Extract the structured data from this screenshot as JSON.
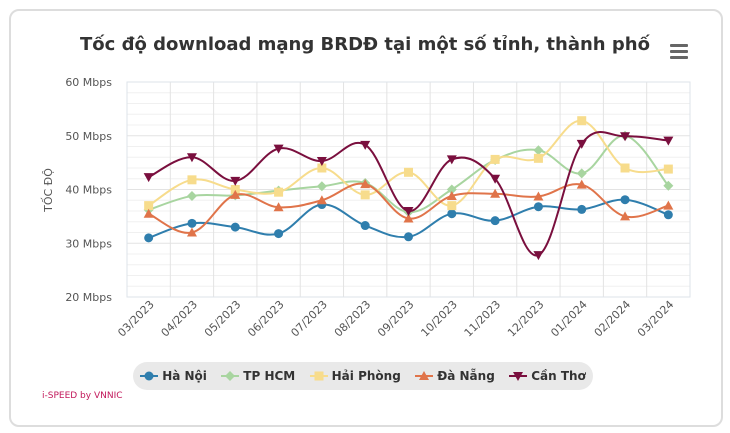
{
  "credit": "i-SPEED by VNNIC",
  "chart_data": {
    "type": "line",
    "title": "Tốc độ download mạng BRDĐ tại một số tỉnh, thành phố",
    "ylabel": "TỐC ĐỘ",
    "ylim": [
      20,
      60
    ],
    "yticks": [
      "20 Mbps",
      "30 Mbps",
      "40 Mbps",
      "50 Mbps",
      "60 Mbps"
    ],
    "categories": [
      "03/2023",
      "04/2023",
      "05/2023",
      "06/2023",
      "07/2023",
      "08/2023",
      "09/2023",
      "10/2023",
      "11/2023",
      "12/2023",
      "01/2024",
      "02/2024",
      "03/2024"
    ],
    "grid": true,
    "legend": "bottom",
    "series": [
      {
        "name": "Hà Nội",
        "color": "#2f7ead",
        "marker": "circle",
        "values": [
          31,
          33.7,
          33,
          31.8,
          37.2,
          33.3,
          31.2,
          35.5,
          34.2,
          36.8,
          36.3,
          38.1,
          35.3
        ]
      },
      {
        "name": "TP HCM",
        "color": "#a8d5a0",
        "marker": "diamond",
        "values": [
          36.2,
          38.8,
          38.9,
          39.8,
          40.6,
          41.2,
          35.8,
          40,
          45.5,
          47.3,
          43,
          50,
          40.7
        ]
      },
      {
        "name": "Hải Phòng",
        "color": "#f7dc8c",
        "marker": "square",
        "values": [
          37,
          41.8,
          40,
          39.5,
          44,
          39,
          43.2,
          37,
          45.6,
          45.8,
          52.8,
          44,
          43.8
        ]
      },
      {
        "name": "Đà Nẵng",
        "color": "#e0744a",
        "marker": "triangle",
        "values": [
          35.5,
          32,
          39,
          36.7,
          38,
          41,
          34.6,
          38.8,
          39.2,
          38.7,
          40.9,
          35,
          37
        ]
      },
      {
        "name": "Cần Thơ",
        "color": "#7a0f3e",
        "marker": "triangle-down",
        "values": [
          42.3,
          46,
          41.6,
          47.6,
          45.3,
          48.3,
          36,
          45.6,
          42,
          27.8,
          48.5,
          49.9,
          49.1
        ]
      }
    ]
  }
}
